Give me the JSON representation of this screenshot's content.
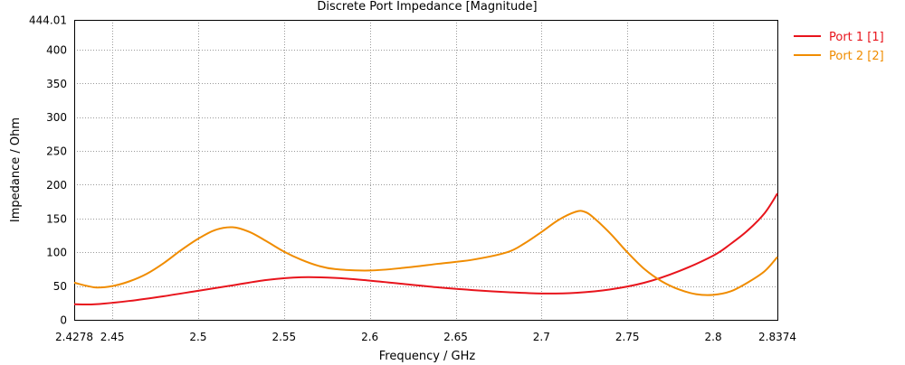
{
  "chart_data": {
    "type": "line",
    "title": "Discrete Port Impedance [Magnitude]",
    "xlabel": "Frequency / GHz",
    "ylabel": "Impedance / Ohm",
    "xlim": [
      2.4278,
      2.8374
    ],
    "ylim": [
      0,
      444.01
    ],
    "grid": true,
    "grid_style": "dotted",
    "legend_placement": "top-right outside",
    "xticks": [
      {
        "value": 2.4278,
        "label": "2.4278"
      },
      {
        "value": 2.45,
        "label": "2.45"
      },
      {
        "value": 2.5,
        "label": "2.5"
      },
      {
        "value": 2.55,
        "label": "2.55"
      },
      {
        "value": 2.6,
        "label": "2.6"
      },
      {
        "value": 2.65,
        "label": "2.65"
      },
      {
        "value": 2.7,
        "label": "2.7"
      },
      {
        "value": 2.75,
        "label": "2.75"
      },
      {
        "value": 2.8,
        "label": "2.8"
      },
      {
        "value": 2.8374,
        "label": "2.8374"
      }
    ],
    "yticks": [
      {
        "value": 0,
        "label": "0"
      },
      {
        "value": 50,
        "label": "50"
      },
      {
        "value": 100,
        "label": "100"
      },
      {
        "value": 150,
        "label": "150"
      },
      {
        "value": 200,
        "label": "200"
      },
      {
        "value": 250,
        "label": "250"
      },
      {
        "value": 300,
        "label": "300"
      },
      {
        "value": 350,
        "label": "350"
      },
      {
        "value": 400,
        "label": "400"
      },
      {
        "value": 444.01,
        "label": "444.01"
      }
    ],
    "series": [
      {
        "name": "Port 1 [1]",
        "color": "#e8141c",
        "x": [
          2.4278,
          2.44,
          2.46,
          2.48,
          2.5,
          2.52,
          2.54,
          2.56,
          2.58,
          2.6,
          2.62,
          2.64,
          2.66,
          2.68,
          2.7,
          2.72,
          2.74,
          2.76,
          2.78,
          2.8,
          2.81,
          2.82,
          2.83,
          2.8374
        ],
        "y": [
          23,
          23,
          28,
          35,
          43,
          51,
          59,
          63,
          62,
          58,
          53,
          48,
          44,
          41,
          39,
          40,
          45,
          55,
          72,
          95,
          112,
          132,
          158,
          187
        ]
      },
      {
        "name": "Port 2 [2]",
        "color": "#f08c00",
        "x": [
          2.4278,
          2.44,
          2.45,
          2.46,
          2.47,
          2.48,
          2.49,
          2.5,
          2.51,
          2.52,
          2.53,
          2.54,
          2.55,
          2.56,
          2.57,
          2.58,
          2.6,
          2.62,
          2.64,
          2.66,
          2.68,
          2.69,
          2.7,
          2.71,
          2.72,
          2.725,
          2.73,
          2.74,
          2.75,
          2.76,
          2.77,
          2.78,
          2.79,
          2.8,
          2.81,
          2.82,
          2.83,
          2.8374
        ],
        "y": [
          55,
          48,
          50,
          57,
          68,
          84,
          103,
          120,
          133,
          137,
          130,
          116,
          101,
          89,
          80,
          75,
          73,
          77,
          83,
          89,
          100,
          113,
          130,
          148,
          160,
          160,
          152,
          128,
          100,
          75,
          57,
          45,
          38,
          37,
          42,
          55,
          72,
          93
        ]
      }
    ]
  }
}
